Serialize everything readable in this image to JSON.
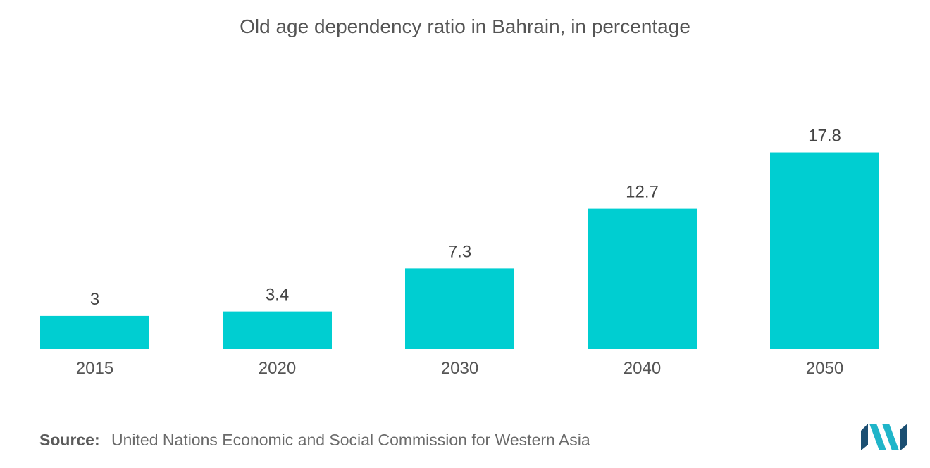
{
  "chart_data": {
    "type": "bar",
    "title": "Old age dependency ratio in Bahrain, in percentage",
    "categories": [
      "2015",
      "2020",
      "2030",
      "2040",
      "2050"
    ],
    "values": [
      3,
      3.4,
      7.3,
      12.7,
      17.8
    ],
    "value_labels": [
      "3",
      "3.4",
      "7.3",
      "12.7",
      "17.8"
    ],
    "xlabel": "",
    "ylabel": "",
    "ylim": [
      0,
      20
    ],
    "grid": false,
    "legend": "none",
    "bar_color": "#00CED1"
  },
  "source": {
    "label": "Source:",
    "text": "United Nations Economic and Social Commission for Western Asia"
  },
  "logo": {
    "icon": "mordor-intelligence-logo-icon",
    "colors": [
      "#1b4f72",
      "#1fb5c9"
    ]
  }
}
